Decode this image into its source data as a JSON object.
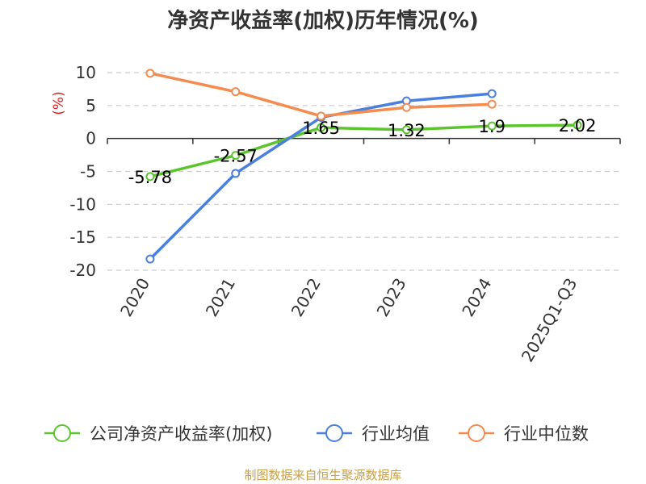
{
  "chart_data": {
    "type": "line",
    "title": "净资产收益率(加权)历年情况(%)",
    "ylabel": "(%)",
    "categories": [
      "2020",
      "2021",
      "2022",
      "2023",
      "2024",
      "2025Q1-Q3"
    ],
    "ylim": [
      -20,
      10
    ],
    "yticks": [
      10,
      5,
      0,
      -5,
      -10,
      -15,
      -20
    ],
    "grid": true,
    "legend_position": "bottom",
    "series": [
      {
        "name": "公司净资产收益率(加权)",
        "color": "#5cc42d",
        "values": [
          -5.78,
          -2.57,
          1.65,
          1.32,
          1.9,
          2.02
        ],
        "labels": [
          "-5.78",
          "-2.57",
          "1.65",
          "1.32",
          "1.9",
          "2.02"
        ]
      },
      {
        "name": "行业均值",
        "color": "#4a7fdc",
        "values": [
          -18.3,
          -5.3,
          3.2,
          5.7,
          6.8,
          null
        ]
      },
      {
        "name": "行业中位数",
        "color": "#f58b4e",
        "values": [
          9.9,
          7.1,
          3.4,
          4.7,
          5.2,
          null
        ]
      }
    ],
    "source": "制图数据来自恒生聚源数据库"
  }
}
